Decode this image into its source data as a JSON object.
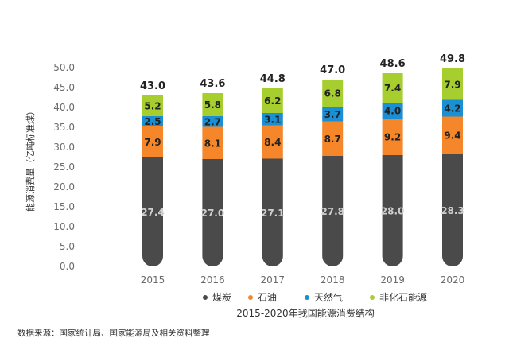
{
  "chart_data": {
    "type": "bar",
    "stacked": true,
    "title": "2015-2020年我国能源消费结构",
    "xlabel": "",
    "ylabel": "能源消费量（亿吨标准煤）",
    "categories": [
      "2015",
      "2016",
      "2017",
      "2018",
      "2019",
      "2020"
    ],
    "ylim": [
      0,
      50
    ],
    "yticks": [
      "0.0",
      "5.0",
      "10.0",
      "15.0",
      "20.0",
      "25.0",
      "30.0",
      "35.0",
      "40.0",
      "45.0",
      "50.0"
    ],
    "series": [
      {
        "name": "煤炭",
        "color": "#4a4a4a",
        "label_color": "#cfcfcf",
        "values": [
          27.4,
          27.0,
          27.1,
          27.8,
          28.0,
          28.3
        ]
      },
      {
        "name": "石油",
        "color": "#f5872a",
        "label_color": "#222222",
        "values": [
          7.9,
          8.1,
          8.4,
          8.7,
          9.2,
          9.4
        ]
      },
      {
        "name": "天然气",
        "color": "#1a8fd4",
        "label_color": "#222222",
        "values": [
          2.5,
          2.7,
          3.1,
          3.7,
          4.0,
          4.2
        ]
      },
      {
        "name": "非化石能源",
        "color": "#a6ce2f",
        "label_color": "#222222",
        "values": [
          5.2,
          5.8,
          6.2,
          6.8,
          7.4,
          7.9
        ]
      }
    ],
    "totals": [
      43.0,
      43.6,
      44.8,
      47.0,
      48.6,
      49.8
    ],
    "total_labels": [
      "43.0",
      "43.6",
      "44.8",
      "47.0",
      "48.6",
      "49.8"
    ],
    "grid": false,
    "legend_position": "bottom",
    "source_note": "数据来源：国家统计局、国家能源局及相关资料整理"
  }
}
